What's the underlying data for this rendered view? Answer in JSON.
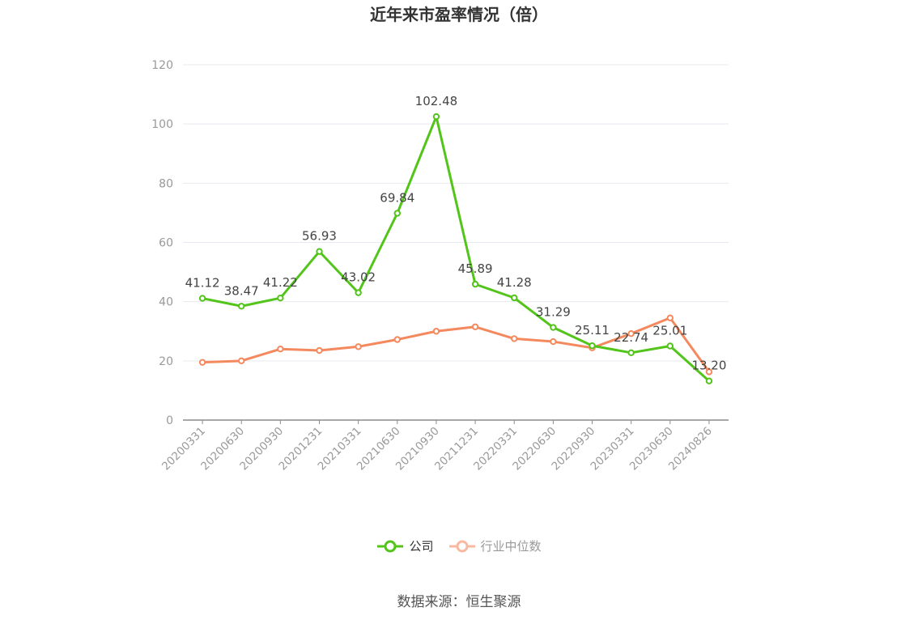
{
  "chart_data": {
    "type": "line",
    "title": "近年来市盈率情况（倍）",
    "categories": [
      "20200331",
      "20200630",
      "20200930",
      "20201231",
      "20210331",
      "20210630",
      "20210930",
      "20211231",
      "20220331",
      "20220630",
      "20220930",
      "20230331",
      "20230630",
      "20240826"
    ],
    "ylim": [
      0,
      120
    ],
    "yticks": [
      0,
      20,
      40,
      60,
      80,
      100,
      120
    ],
    "grid": true,
    "legend_position": "bottom",
    "series": [
      {
        "name": "公司",
        "color": "#52c41a",
        "values": [
          41.12,
          38.47,
          41.22,
          56.93,
          43.02,
          69.84,
          102.48,
          45.89,
          41.28,
          31.29,
          25.11,
          22.74,
          25.01,
          13.2
        ],
        "labels": [
          "41.12",
          "38.47",
          "41.22",
          "56.93",
          "43.02",
          "69.84",
          "102.48",
          "45.89",
          "41.28",
          "31.29",
          "25.11",
          "22.74",
          "25.01",
          "13.20"
        ]
      },
      {
        "name": "行业中位数",
        "color": "#f5895e",
        "values": [
          19.5,
          20.0,
          24.0,
          23.5,
          24.8,
          27.2,
          30.0,
          31.5,
          27.5,
          26.5,
          24.4,
          29.2,
          34.5,
          16.3
        ]
      }
    ]
  },
  "legend": {
    "company_label": "公司",
    "industry_label": "行业中位数"
  },
  "source_text": "数据来源：恒生聚源"
}
